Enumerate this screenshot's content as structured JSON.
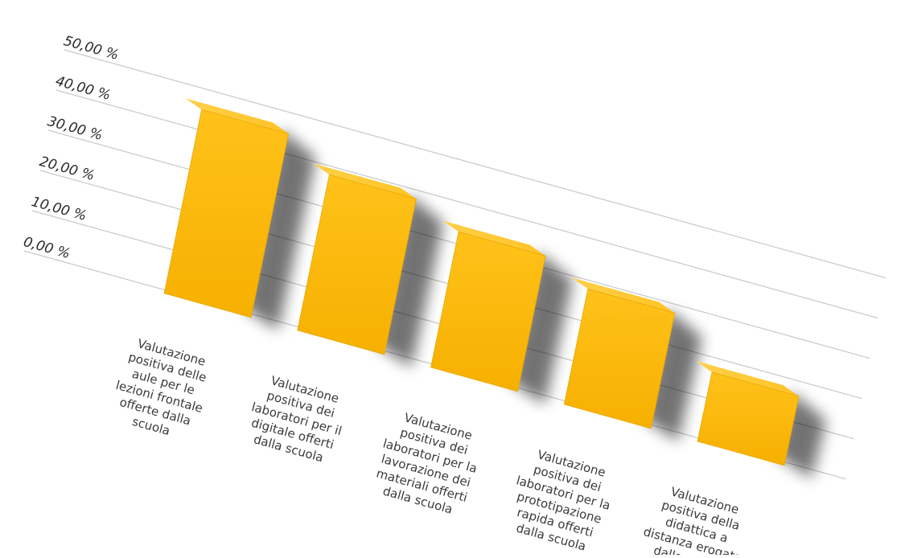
{
  "chart_data": {
    "type": "bar",
    "title": "",
    "xlabel": "",
    "ylabel": "",
    "ylim": [
      0,
      50
    ],
    "y_tick_labels": [
      "0,00 %",
      "10,00 %",
      "20,00 %",
      "30,00 %",
      "40,00 %",
      "50,00 %"
    ],
    "categories": [
      "Valutazione positiva delle aule per le lezioni frontale offerte dalla scuola",
      "Valutazione positiva dei laboratori per il digitale offerti dalla scuola",
      "Valutazione positiva dei laboratori per la lavorazione dei materiali offerti dalla scuola",
      "Valutazione positiva dei laboratori per la prototipazione rapida offerti dalla scuola",
      "Valutazione positiva della didattica a distanza erogata dalla scuola"
    ],
    "category_label_lines": [
      [
        "Valutazione",
        "positiva delle",
        "aule per le",
        "lezioni frontale",
        "offerte dalla",
        "scuola"
      ],
      [
        "Valutazione",
        "positiva dei",
        "laboratori per il",
        "digitale offerti",
        "dalla scuola"
      ],
      [
        "Valutazione",
        "positiva dei",
        "laboratori per la",
        "lavorazione dei",
        "materiali offerti",
        "dalla scuola"
      ],
      [
        "Valutazione",
        "positiva dei",
        "laboratori per la",
        "prototipazione",
        "rapida offerti",
        "dalla scuola"
      ],
      [
        "Valutazione",
        "positiva della",
        "didattica a",
        "distanza erogata",
        "dalla scuola"
      ]
    ],
    "values": [
      46.5,
      39.5,
      34.5,
      29.5,
      18.0
    ],
    "grid": true,
    "colors": {
      "bar_face": "#ffbf10",
      "bar_top": "#ffca3a",
      "bar_side": "#e29a00",
      "grid": "#c8c8c8"
    }
  }
}
